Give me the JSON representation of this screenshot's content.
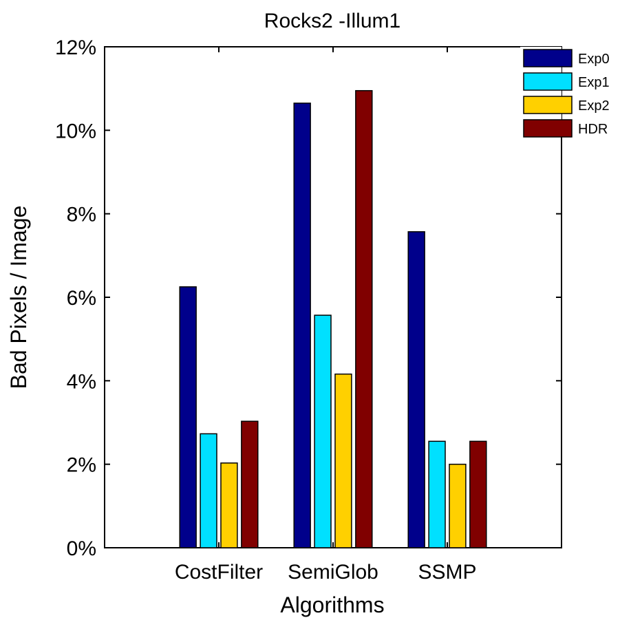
{
  "chart_data": {
    "type": "bar",
    "title": "Rocks2 -Illum1",
    "xlabel": "Algorithms",
    "ylabel": "Bad Pixels / Image",
    "categories": [
      "CostFilter",
      "SemiGlob",
      "SSMP"
    ],
    "xlim": [
      0.5,
      4.5
    ],
    "ylim": [
      0,
      12
    ],
    "y_ticks": [
      "0%",
      "2%",
      "4%",
      "6%",
      "8%",
      "10%",
      "12%"
    ],
    "y_tick_values": [
      0,
      2,
      4,
      6,
      8,
      10,
      12
    ],
    "grid": false,
    "legend_position": "top-right",
    "series": [
      {
        "name": "Exp0",
        "color": "#00008b",
        "values": [
          6.25,
          10.65,
          7.57
        ]
      },
      {
        "name": "Exp1",
        "color": "#00e0ff",
        "values": [
          2.73,
          5.57,
          2.55
        ]
      },
      {
        "name": "Exp2",
        "color": "#ffd000",
        "values": [
          2.03,
          4.16,
          2.0
        ]
      },
      {
        "name": "HDR",
        "color": "#800000",
        "values": [
          3.03,
          10.95,
          2.55
        ]
      }
    ]
  }
}
